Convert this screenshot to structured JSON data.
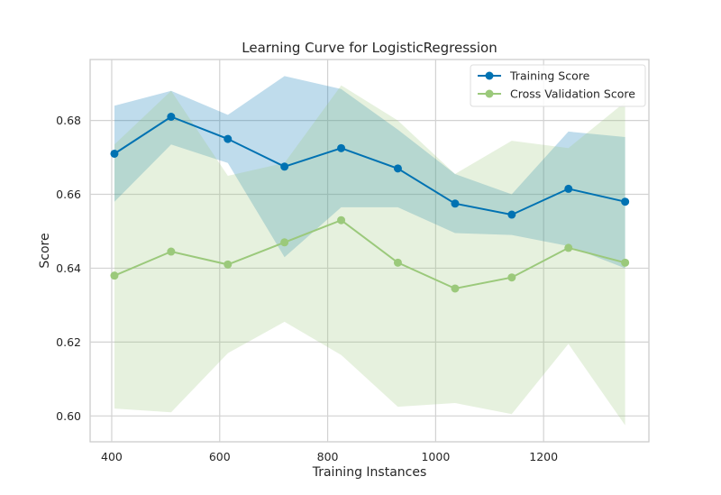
{
  "chart_data": {
    "type": "line",
    "title": "Learning Curve for LogisticRegression",
    "xlabel": "Training Instances",
    "ylabel": "Score",
    "xlim": [
      360,
      1395
    ],
    "ylim": [
      0.593,
      0.6965
    ],
    "x_ticks": [
      {
        "value": 400,
        "label": "400"
      },
      {
        "value": 600,
        "label": "600"
      },
      {
        "value": 800,
        "label": "800"
      },
      {
        "value": 1000,
        "label": "1000"
      },
      {
        "value": 1200,
        "label": "1200"
      }
    ],
    "y_ticks": [
      {
        "value": 0.6,
        "label": "0.60"
      },
      {
        "value": 0.62,
        "label": "0.62"
      },
      {
        "value": 0.64,
        "label": "0.64"
      },
      {
        "value": 0.66,
        "label": "0.66"
      },
      {
        "value": 0.68,
        "label": "0.68"
      }
    ],
    "grid": true,
    "legend_position": "top-right",
    "x": [
      405,
      510,
      615,
      720,
      825,
      930,
      1036,
      1141,
      1246,
      1351
    ],
    "series": [
      {
        "name": "Training Score",
        "color": "#0072b2",
        "values": [
          0.671,
          0.681,
          0.675,
          0.6675,
          0.6725,
          0.667,
          0.6575,
          0.6545,
          0.6615,
          0.658
        ],
        "upper": [
          0.684,
          0.688,
          0.6815,
          0.692,
          0.6885,
          0.6775,
          0.6655,
          0.66,
          0.677,
          0.6755
        ],
        "lower": [
          0.658,
          0.6735,
          0.6685,
          0.643,
          0.6565,
          0.6565,
          0.6495,
          0.649,
          0.646,
          0.64
        ]
      },
      {
        "name": "Cross Validation Score",
        "color": "#9bc97b",
        "values": [
          0.638,
          0.6445,
          0.641,
          0.647,
          0.653,
          0.6415,
          0.6345,
          0.6375,
          0.6455,
          0.6415
        ],
        "upper": [
          0.6735,
          0.688,
          0.665,
          0.6685,
          0.6895,
          0.68,
          0.6655,
          0.6745,
          0.6725,
          0.685
        ],
        "lower": [
          0.602,
          0.601,
          0.617,
          0.6255,
          0.6165,
          0.6025,
          0.6035,
          0.6005,
          0.6195,
          0.5975
        ]
      }
    ]
  }
}
